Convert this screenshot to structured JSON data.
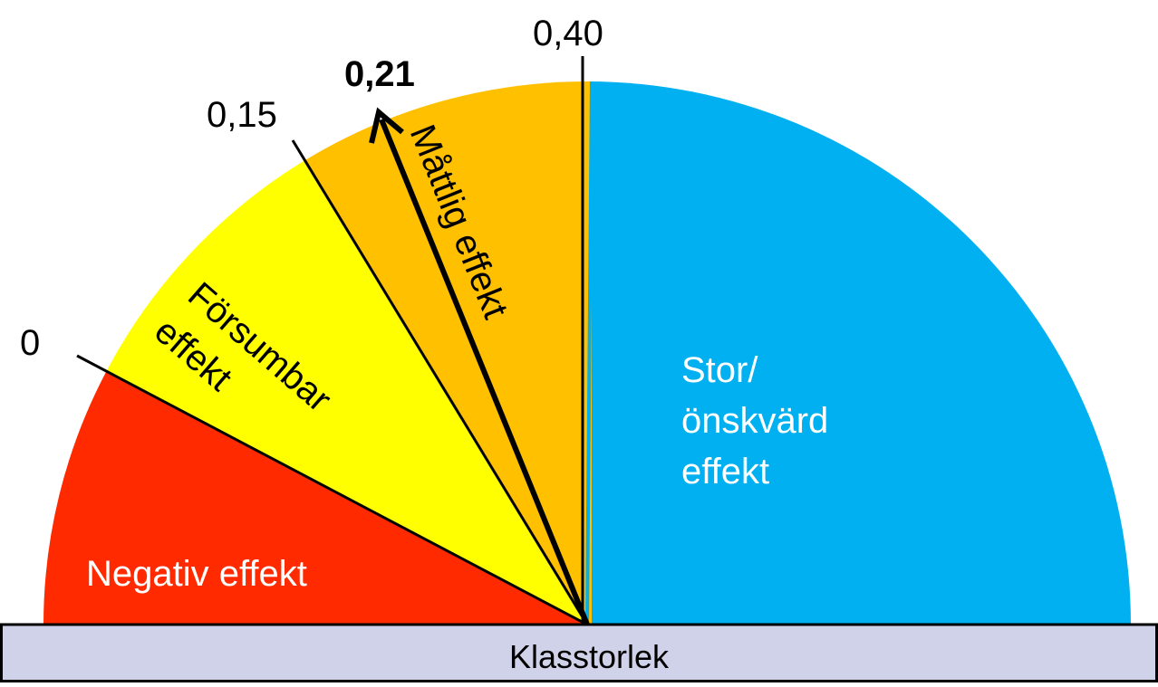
{
  "scale": {
    "ticks": [
      "0",
      "0,15",
      "0,40"
    ],
    "marker": "0,21",
    "zones": {
      "negative": "Negativ effekt",
      "negligible": [
        "Försumbar",
        "effekt"
      ],
      "moderate": "Måttlig effekt",
      "large": [
        "Stor/",
        "önskvärd",
        "effekt"
      ]
    },
    "base_label": "Klasstorlek"
  }
}
